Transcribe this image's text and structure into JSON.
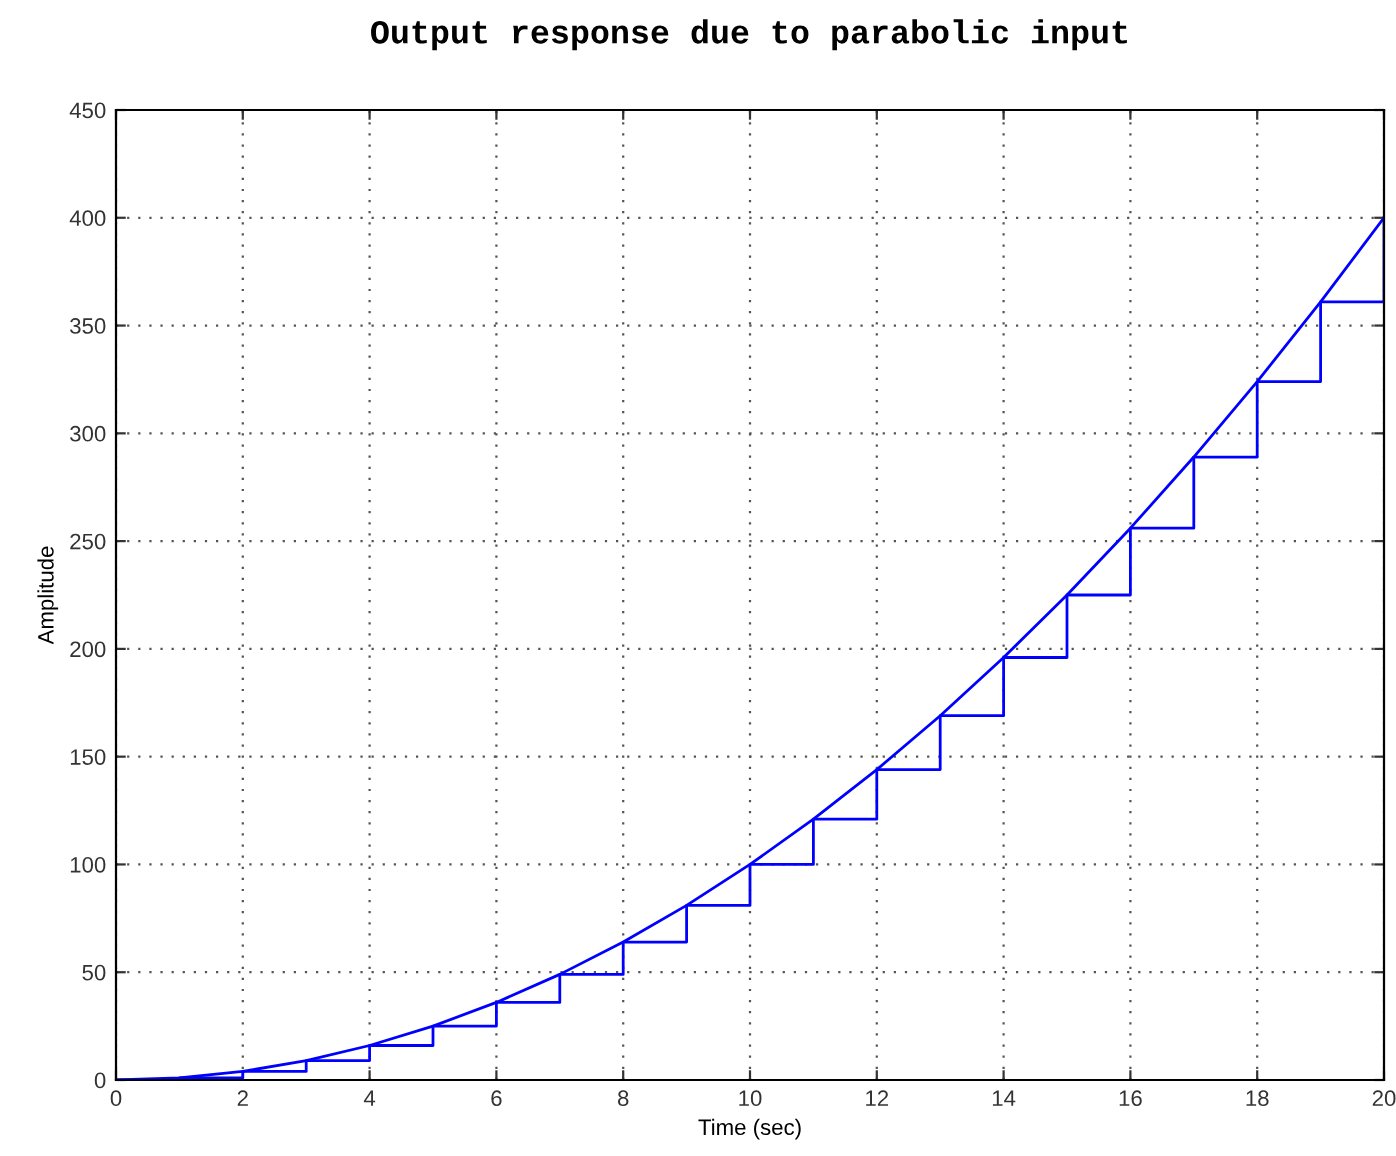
{
  "chart_data": {
    "type": "line",
    "title": "Output response due to parabolic input",
    "xlabel": "Time (sec)",
    "ylabel": "Amplitude",
    "x": [
      0,
      1,
      2,
      3,
      4,
      5,
      6,
      7,
      8,
      9,
      10,
      11,
      12,
      13,
      14,
      15,
      16,
      17,
      18,
      19,
      20
    ],
    "series": [
      {
        "color": "#0000ff",
        "values": [
          0,
          1,
          4,
          9,
          16,
          25,
          36,
          49,
          64,
          81,
          100,
          121,
          144,
          169,
          196,
          225,
          256,
          289,
          324,
          361,
          400
        ]
      },
      {
        "type": "step",
        "color": "#0000ff",
        "values": [
          0,
          1,
          4,
          9,
          16,
          25,
          36,
          49,
          64,
          81,
          100,
          121,
          144,
          169,
          196,
          225,
          256,
          289,
          324,
          361,
          400
        ]
      }
    ],
    "xlim": [
      0,
      20
    ],
    "ylim": [
      0,
      450
    ],
    "xticks": [
      0,
      2,
      4,
      6,
      8,
      10,
      12,
      14,
      16,
      18,
      20
    ],
    "yticks": [
      0,
      50,
      100,
      150,
      200,
      250,
      300,
      350,
      400,
      450
    ],
    "grid": true,
    "line_style": "solid",
    "marker": "none"
  }
}
